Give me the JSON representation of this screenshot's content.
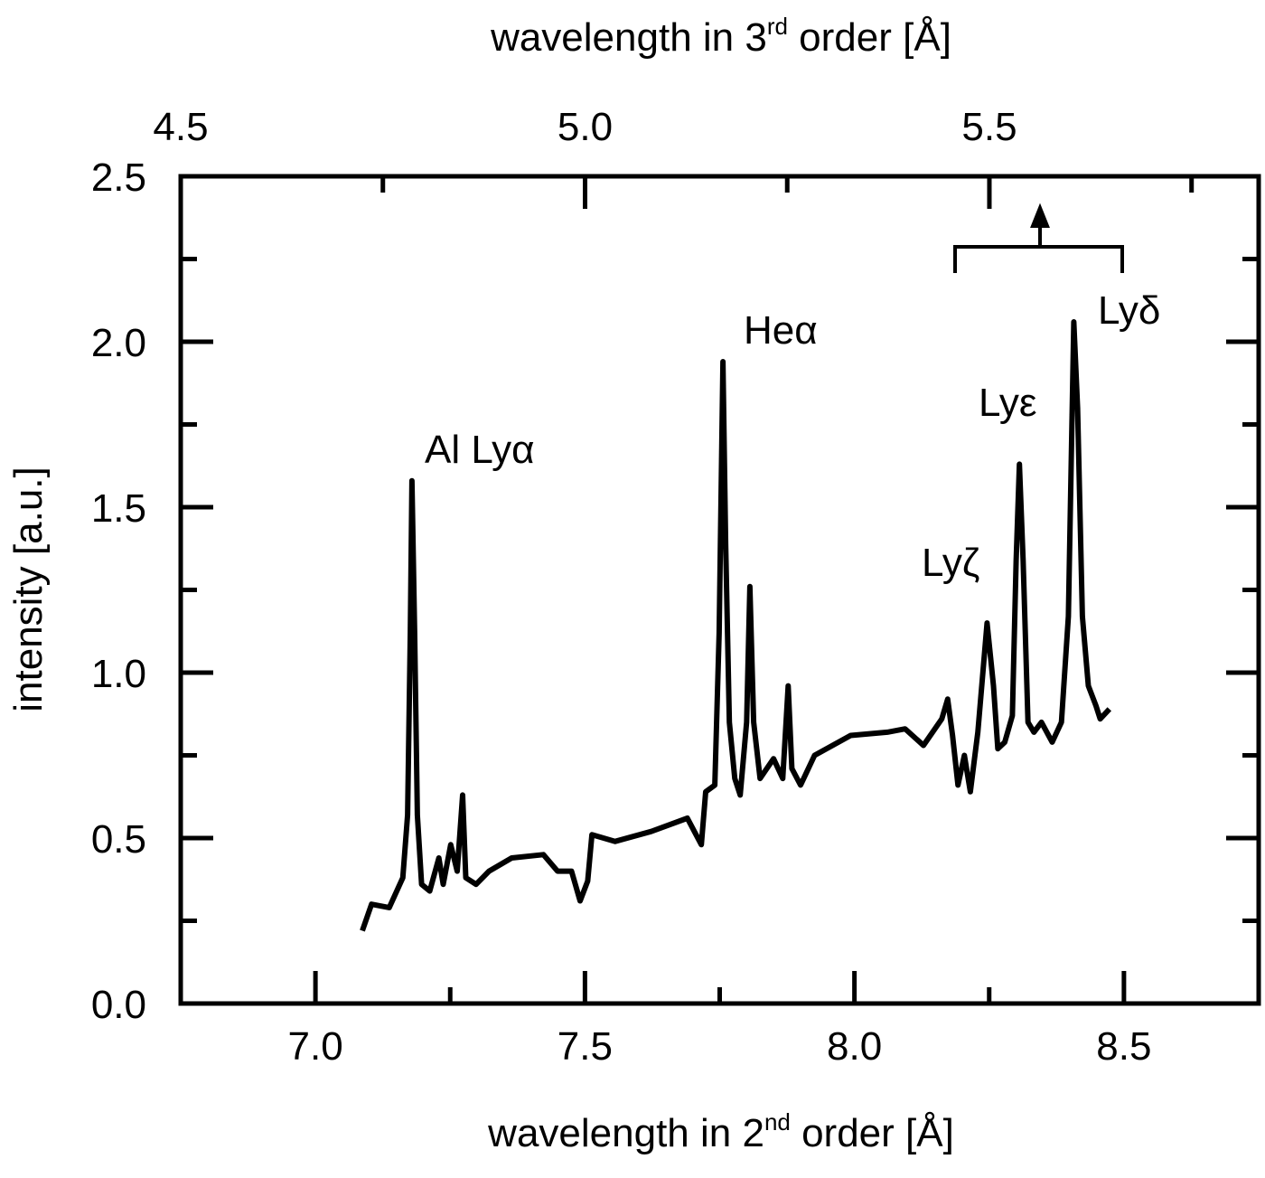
{
  "chart_data": {
    "type": "line",
    "xlabel_parts": [
      "wavelength in 2",
      "nd",
      " order [Å]"
    ],
    "x2label_parts": [
      "wavelength in 3",
      "rd",
      " order [Å]"
    ],
    "ylabel": "intensity [a.u.]",
    "color": "#000000",
    "x": [
      7.087,
      7.104,
      7.137,
      7.162,
      7.171,
      7.176,
      7.179,
      7.184,
      7.189,
      7.197,
      7.212,
      7.229,
      7.237,
      7.251,
      7.263,
      7.273,
      7.279,
      7.298,
      7.322,
      7.364,
      7.423,
      7.449,
      7.475,
      7.491,
      7.505,
      7.513,
      7.556,
      7.623,
      7.69,
      7.716,
      7.724,
      7.741,
      7.749,
      7.756,
      7.761,
      7.768,
      7.778,
      7.788,
      7.8,
      7.806,
      7.813,
      7.825,
      7.85,
      7.867,
      7.877,
      7.884,
      7.9,
      7.926,
      7.993,
      8.061,
      8.094,
      8.128,
      8.162,
      8.173,
      8.182,
      8.192,
      8.204,
      8.215,
      8.229,
      8.246,
      8.258,
      8.266,
      8.279,
      8.293,
      8.3,
      8.306,
      8.313,
      8.322,
      8.333,
      8.347,
      8.367,
      8.384,
      8.397,
      8.407,
      8.414,
      8.423,
      8.434,
      8.448,
      8.456,
      8.473
    ],
    "values": [
      0.22,
      0.3,
      0.29,
      0.38,
      0.57,
      1.12,
      1.58,
      1.12,
      0.57,
      0.36,
      0.34,
      0.44,
      0.36,
      0.48,
      0.4,
      0.63,
      0.38,
      0.36,
      0.4,
      0.44,
      0.45,
      0.4,
      0.4,
      0.31,
      0.37,
      0.51,
      0.49,
      0.52,
      0.56,
      0.48,
      0.64,
      0.66,
      1.12,
      1.94,
      1.39,
      0.85,
      0.68,
      0.63,
      0.85,
      1.26,
      0.85,
      0.68,
      0.74,
      0.68,
      0.96,
      0.71,
      0.66,
      0.75,
      0.81,
      0.82,
      0.83,
      0.78,
      0.86,
      0.92,
      0.81,
      0.66,
      0.75,
      0.64,
      0.82,
      1.15,
      0.96,
      0.77,
      0.79,
      0.87,
      1.34,
      1.63,
      1.34,
      0.85,
      0.82,
      0.85,
      0.79,
      0.85,
      1.17,
      2.06,
      1.8,
      1.17,
      0.96,
      0.9,
      0.86,
      0.89
    ],
    "xlim": [
      6.75,
      8.75
    ],
    "xticks": [
      {
        "value": 7.0,
        "label": "7.0"
      },
      {
        "value": 7.5,
        "label": "7.5"
      },
      {
        "value": 8.0,
        "label": "8.0"
      },
      {
        "value": 8.5,
        "label": "8.5"
      }
    ],
    "xminorticks": [
      7.25,
      7.75,
      8.25
    ],
    "x2lim": [
      4.5,
      5.833
    ],
    "x2ticks": [
      {
        "value": 4.5,
        "label": "4.5"
      },
      {
        "value": 5.0,
        "label": "5.0"
      },
      {
        "value": 5.5,
        "label": "5.5"
      }
    ],
    "x2minorticks": [
      4.75,
      5.25,
      5.75
    ],
    "ylim": [
      0,
      2.5
    ],
    "yticks": [
      {
        "value": 0,
        "label": "0.0"
      },
      {
        "value": 0.5,
        "label": "0.5"
      },
      {
        "value": 1.0,
        "label": "1.0"
      },
      {
        "value": 1.5,
        "label": "1.5"
      },
      {
        "value": 2.0,
        "label": "2.0"
      },
      {
        "value": 2.5,
        "label": "2.5"
      }
    ],
    "yminorticks": [
      0.25,
      0.75,
      1.25,
      1.75,
      2.25
    ],
    "annotations": [
      "Al Lyα",
      "Heα",
      "Lyζ",
      "Lyε",
      "Lyδ"
    ]
  }
}
